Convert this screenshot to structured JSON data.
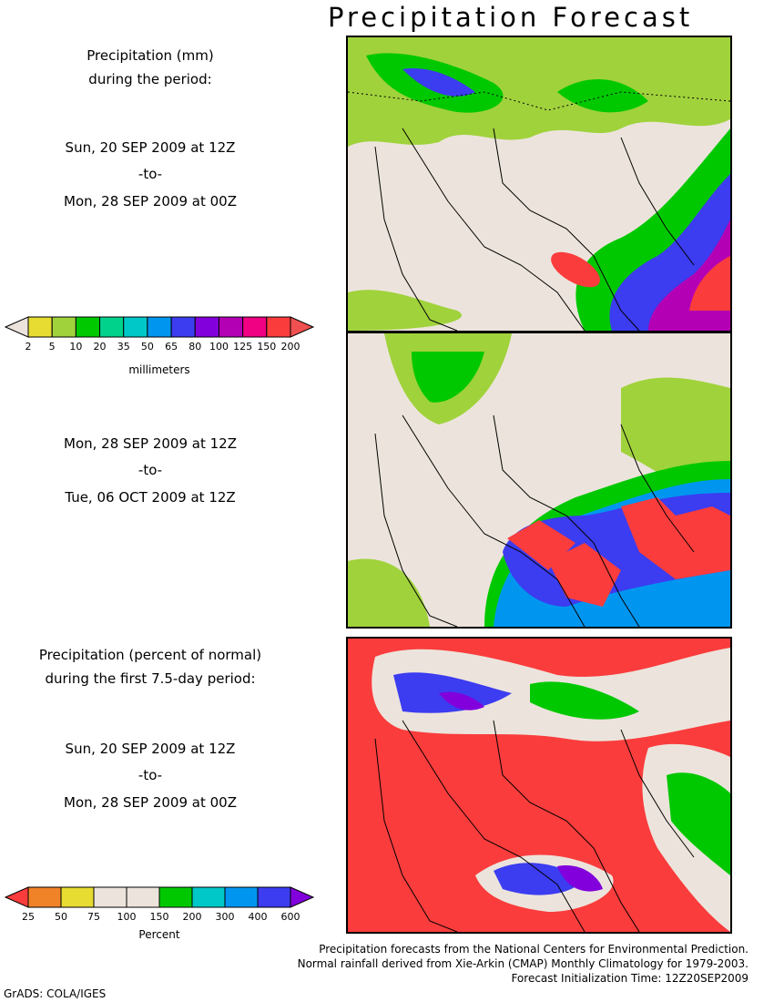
{
  "title": "Precipitation Forecast",
  "panel1": {
    "heading": [
      "Precipitation (mm)",
      "during the period:"
    ],
    "start": "Sun, 20 SEP 2009 at 12Z",
    "to": "-to-",
    "end": "Mon, 28 SEP 2009 at 00Z"
  },
  "panel2": {
    "start": "Mon, 28 SEP 2009 at 12Z",
    "to": "-to-",
    "end": "Tue, 06 OCT 2009 at 12Z"
  },
  "panel3": {
    "heading": [
      "Precipitation (percent of normal)",
      "during the first 7.5-day period:"
    ],
    "start": "Sun, 20 SEP 2009 at 12Z",
    "to": "-to-",
    "end": "Mon, 28 SEP 2009 at 00Z"
  },
  "colorbar_mm": {
    "labels": [
      "2",
      "5",
      "10",
      "20",
      "35",
      "50",
      "65",
      "80",
      "100",
      "125",
      "150",
      "200"
    ],
    "colors": [
      "#ece4dc",
      "#e6dc32",
      "#a0d23c",
      "#00c800",
      "#00d28c",
      "#00c8c8",
      "#0096f0",
      "#3c3cf0",
      "#8200dc",
      "#b400b4",
      "#f00082",
      "#fa3c3c",
      "#f05050"
    ],
    "unit": "millimeters"
  },
  "colorbar_pct": {
    "labels": [
      "25",
      "50",
      "75",
      "100",
      "150",
      "200",
      "300",
      "400",
      "600"
    ],
    "colors": [
      "#fa3c3c",
      "#f08228",
      "#e6dc32",
      "#ece4dc",
      "#ece4dc",
      "#00c800",
      "#00c8c8",
      "#0096f0",
      "#3c3cf0",
      "#8200dc"
    ],
    "unit": "Percent"
  },
  "footer": {
    "line1": "Precipitation forecasts from the National Centers for Environmental Prediction.",
    "line2": "Normal rainfall derived from Xie-Arkin (CMAP) Monthly Climatology for 1979-2003.",
    "line3": "Forecast Initialization Time: 12Z20SEP2009",
    "grads": "GrADS: COLA/IGES"
  }
}
